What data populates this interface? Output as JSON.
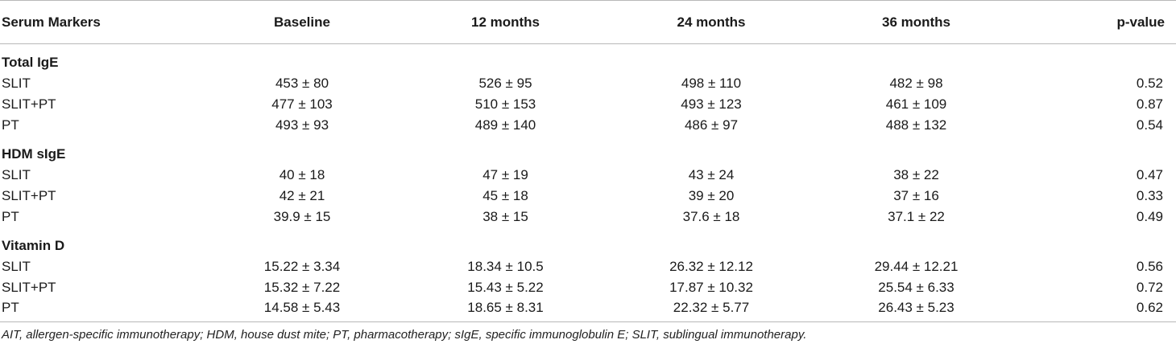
{
  "table": {
    "headers": [
      "Serum Markers",
      "Baseline",
      "12 months",
      "24 months",
      "36 months",
      "p-value"
    ],
    "sections": [
      {
        "title": "Total IgE",
        "rows": [
          {
            "label": "SLIT",
            "values": [
              "453 ± 80",
              "526 ± 95",
              "498 ± 110",
              "482 ± 98"
            ],
            "p": "0.52"
          },
          {
            "label": "SLIT+PT",
            "values": [
              "477 ± 103",
              "510 ± 153",
              "493 ± 123",
              "461 ± 109"
            ],
            "p": "0.87"
          },
          {
            "label": "PT",
            "values": [
              "493 ± 93",
              "489 ± 140",
              "486 ± 97",
              "488 ± 132"
            ],
            "p": "0.54"
          }
        ]
      },
      {
        "title": "HDM sIgE",
        "rows": [
          {
            "label": "SLIT",
            "values": [
              "40 ± 18",
              "47 ± 19",
              "43 ± 24",
              "38 ± 22"
            ],
            "p": "0.47"
          },
          {
            "label": "SLIT+PT",
            "values": [
              "42 ± 21",
              "45 ± 18",
              "39 ± 20",
              "37 ± 16"
            ],
            "p": "0.33"
          },
          {
            "label": "PT",
            "values": [
              "39.9 ± 15",
              "38 ± 15",
              "37.6 ± 18",
              "37.1 ± 22"
            ],
            "p": "0.49"
          }
        ]
      },
      {
        "title": "Vitamin D",
        "rows": [
          {
            "label": "SLIT",
            "values": [
              "15.22 ± 3.34",
              "18.34 ± 10.5",
              "26.32 ± 12.12",
              "29.44 ± 12.21"
            ],
            "p": "0.56"
          },
          {
            "label": "SLIT+PT",
            "values": [
              "15.32 ± 7.22",
              "15.43 ± 5.22",
              "17.87 ± 10.32",
              "25.54 ± 6.33"
            ],
            "p": "0.72"
          },
          {
            "label": "PT",
            "values": [
              "14.58 ± 5.43",
              "18.65 ± 8.31",
              "22.32 ± 5.77",
              "26.43 ± 5.23"
            ],
            "p": "0.62"
          }
        ]
      }
    ]
  },
  "footnote": "AIT, allergen-specific immunotherapy; HDM, house dust mite; PT, pharmacotherapy; sIgE, specific immunoglobulin E; SLIT, sublingual immunotherapy.",
  "colors": {
    "text": "#1a1a1a",
    "rule": "#b8b8b8"
  }
}
